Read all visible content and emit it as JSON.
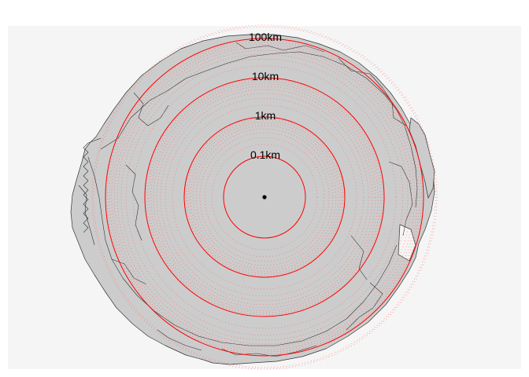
{
  "map": {
    "panel_background": "#f5f5f5",
    "land_fill": "#cccccc",
    "land_stroke": "#333333",
    "ring_color": "#ff0000",
    "minor_ring_color": "#ff6666",
    "center_marker_color": "#000000",
    "scale_type": "logarithmic",
    "rings": [
      {
        "label": "0.1km",
        "distance_km": 0.1
      },
      {
        "label": "1km",
        "distance_km": 1
      },
      {
        "label": "10km",
        "distance_km": 10
      },
      {
        "label": "100km",
        "distance_km": 100
      }
    ],
    "minor_rings_per_decade": 8
  }
}
